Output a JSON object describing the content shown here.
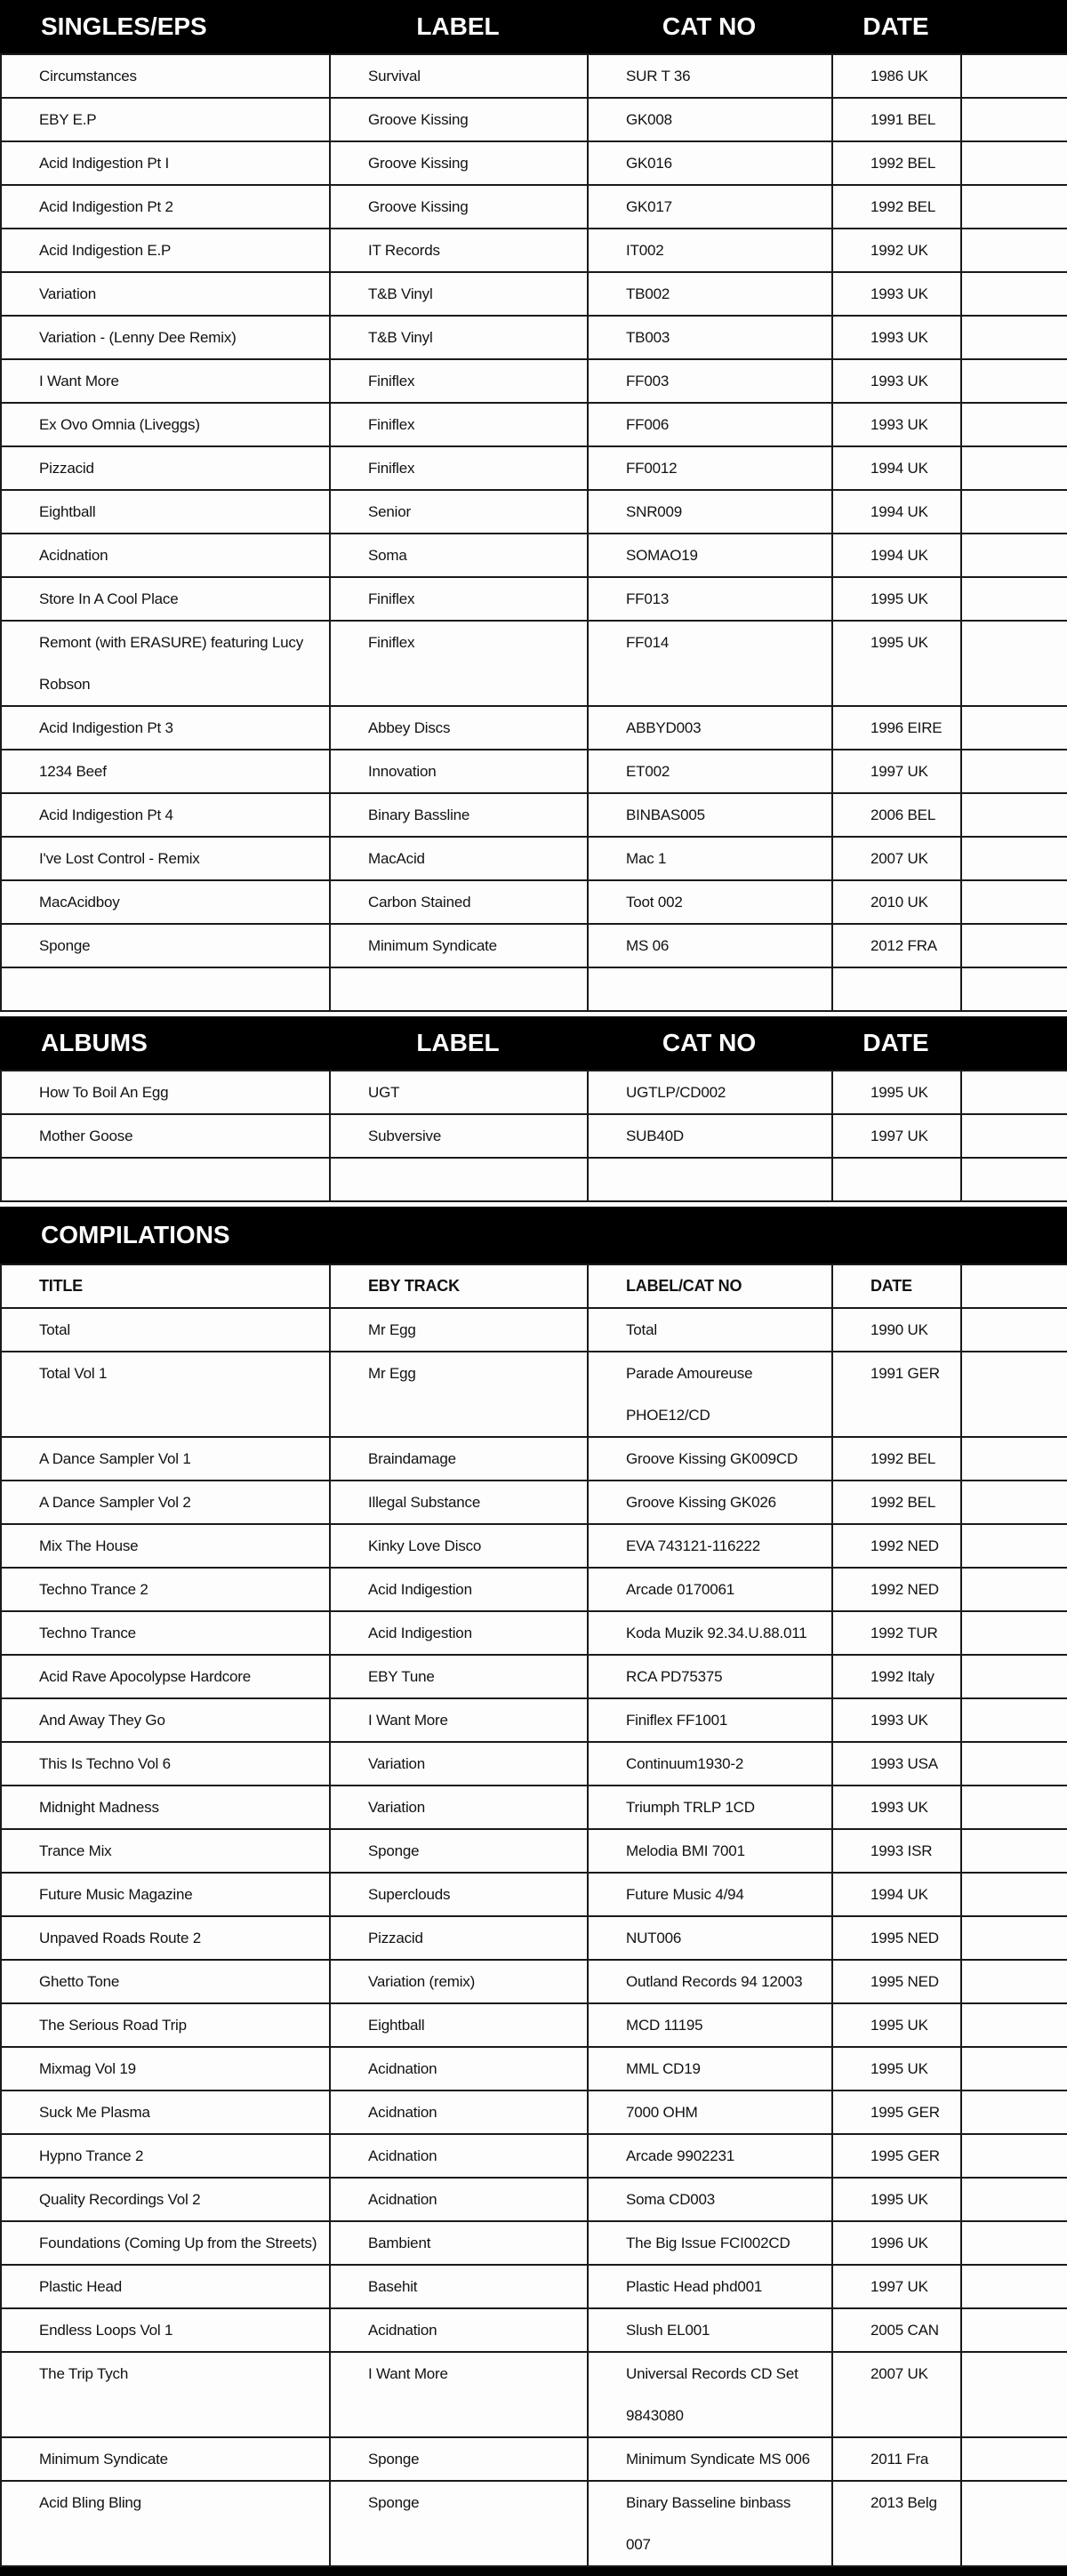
{
  "colors": {
    "bar_background": "#000000",
    "bar_text": "#ffffff",
    "cell_text": "#121212",
    "border": "#1a1a1a",
    "row_background": "#fdfdfd"
  },
  "sections": [
    {
      "title": "SINGLES/EPS",
      "columns": [
        "SINGLES/EPS",
        "LABEL",
        "CAT NO",
        "DATE"
      ],
      "rows": [
        [
          "Circumstances",
          "Survival",
          "SUR T 36",
          "1986 UK"
        ],
        [
          "EBY E.P",
          "Groove Kissing",
          "GK008",
          "1991 BEL"
        ],
        [
          "Acid Indigestion Pt I",
          "Groove Kissing",
          "GK016",
          "1992 BEL"
        ],
        [
          "Acid Indigestion Pt 2",
          "Groove Kissing",
          "GK017",
          "1992 BEL"
        ],
        [
          "Acid Indigestion E.P",
          "IT Records",
          "IT002",
          "1992 UK"
        ],
        [
          "Variation",
          "T&B Vinyl",
          "TB002",
          "1993 UK"
        ],
        [
          "Variation - (Lenny Dee Remix)",
          "T&B Vinyl",
          "TB003",
          "1993 UK"
        ],
        [
          "I Want More",
          "Finiflex",
          "FF003",
          "1993 UK"
        ],
        [
          "Ex Ovo Omnia (Liveggs)",
          "Finiflex",
          "FF006",
          "1993 UK"
        ],
        [
          "Pizzacid",
          "Finiflex",
          "FF0012",
          "1994 UK"
        ],
        [
          "Eightball",
          "Senior",
          "SNR009",
          "1994 UK"
        ],
        [
          "Acidnation",
          "Soma",
          "SOMAO19",
          "1994 UK"
        ],
        [
          "Store In A Cool Place",
          "Finiflex",
          "FF013",
          "1995 UK"
        ],
        [
          "Remont (with ERASURE) featuring Lucy\nRobson",
          "Finiflex",
          "FF014",
          "1995 UK"
        ],
        [
          "Acid Indigestion Pt 3",
          "Abbey Discs",
          "ABBYD003",
          "1996 EIRE"
        ],
        [
          "1234 Beef",
          "Innovation",
          "ET002",
          "1997 UK"
        ],
        [
          "Acid Indigestion Pt 4",
          "Binary Bassline",
          "BINBAS005",
          "2006 BEL"
        ],
        [
          "I've Lost Control - Remix",
          "MacAcid",
          "Mac 1",
          "2007 UK"
        ],
        [
          "MacAcidboy",
          "Carbon Stained",
          "Toot 002",
          "2010 UK"
        ],
        [
          "Sponge",
          "Minimum Syndicate",
          "MS 06",
          "2012 FRA"
        ],
        [
          "",
          "",
          "",
          ""
        ]
      ]
    },
    {
      "title": "ALBUMS",
      "columns": [
        "ALBUMS",
        "LABEL",
        "CAT NO",
        "DATE"
      ],
      "rows": [
        [
          "How To Boil An Egg",
          "UGT",
          "UGTLP/CD002",
          "1995 UK"
        ],
        [
          "Mother Goose",
          "Subversive",
          "SUB40D",
          "1997 UK"
        ],
        [
          "",
          "",
          "",
          ""
        ]
      ]
    },
    {
      "title": "COMPILATIONS",
      "columns": [
        "TITLE",
        "EBY TRACK",
        "LABEL/CAT NO",
        "DATE"
      ],
      "rows": [
        [
          "Total",
          "Mr Egg",
          "Total",
          "1990 UK"
        ],
        [
          "Total Vol 1",
          "Mr Egg",
          "Parade Amoureuse\nPHOE12/CD",
          "1991 GER"
        ],
        [
          "A Dance Sampler Vol 1",
          "Braindamage",
          "Groove Kissing GK009CD",
          "1992 BEL"
        ],
        [
          "A Dance Sampler Vol 2",
          "Illegal Substance",
          "Groove Kissing GK026",
          "1992 BEL"
        ],
        [
          "Mix The House",
          "Kinky Love Disco",
          "EVA 743121-116222",
          "1992 NED"
        ],
        [
          "Techno Trance 2",
          "Acid Indigestion",
          "Arcade 0170061",
          "1992 NED"
        ],
        [
          "Techno Trance",
          "Acid Indigestion",
          "Koda Muzik 92.34.U.88.011",
          "1992 TUR"
        ],
        [
          "Acid Rave Apocolypse Hardcore",
          "EBY Tune",
          "RCA PD75375",
          "1992 Italy"
        ],
        [
          "And Away They Go",
          "I Want More",
          "Finiflex FF1001",
          "1993 UK"
        ],
        [
          "This Is Techno Vol 6",
          "Variation",
          "Continuum1930-2",
          "1993 USA"
        ],
        [
          "Midnight Madness",
          "Variation",
          "Triumph TRLP 1CD",
          "1993 UK"
        ],
        [
          "Trance Mix",
          "Sponge",
          "Melodia BMI 7001",
          "1993 ISR"
        ],
        [
          "Future Music Magazine",
          "Superclouds",
          "Future Music 4/94",
          "1994 UK"
        ],
        [
          "Unpaved Roads Route 2",
          "Pizzacid",
          "NUT006",
          "1995 NED"
        ],
        [
          "Ghetto Tone",
          "Variation (remix)",
          "Outland Records 94 12003",
          "1995 NED"
        ],
        [
          "The Serious Road Trip",
          "Eightball",
          "MCD 11195",
          "1995 UK"
        ],
        [
          "Mixmag Vol 19",
          "Acidnation",
          "MML CD19",
          "1995 UK"
        ],
        [
          "Suck Me Plasma",
          "Acidnation",
          "7000 OHM",
          "1995 GER"
        ],
        [
          "Hypno Trance 2",
          "Acidnation",
          "Arcade 9902231",
          "1995 GER"
        ],
        [
          "Quality Recordings Vol 2",
          "Acidnation",
          "Soma CD003",
          "1995 UK"
        ],
        [
          "Foundations (Coming Up from the Streets)",
          "Bambient",
          "The Big Issue FCI002CD",
          "1996 UK"
        ],
        [
          "Plastic Head",
          "Basehit",
          "Plastic Head phd001",
          "1997 UK"
        ],
        [
          "Endless Loops Vol 1",
          "Acidnation",
          "Slush EL001",
          "2005 CAN"
        ],
        [
          "The Trip Tych",
          "I Want More",
          "Universal Records CD Set\n9843080",
          "2007 UK"
        ],
        [
          "Minimum Syndicate",
          "Sponge",
          "Minimum Syndicate MS 006",
          "2011 Fra"
        ],
        [
          "Acid Bling Bling",
          "Sponge",
          "Binary Basseline binbass\n007",
          "2013 Belg"
        ]
      ]
    }
  ]
}
